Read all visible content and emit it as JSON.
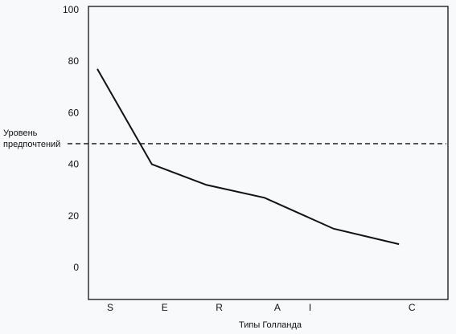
{
  "chart_data": {
    "type": "line",
    "title": "",
    "xlabel": "Типы Голланда",
    "ylabel_lines": [
      "Уровень",
      "предпочтений"
    ],
    "categories": [
      "S",
      "E",
      "R",
      "A",
      "I",
      "C"
    ],
    "category_labels": [
      "S",
      "E",
      "R",
      "A",
      "I",
      "C"
    ],
    "series": [
      {
        "x": [
          0,
          1.5,
          3,
          4.6,
          6.5,
          8.3
        ],
        "values": [
          77,
          40,
          32,
          27,
          15,
          9
        ]
      }
    ],
    "category_x": [
      0,
      1.5,
      3,
      4.6,
      5.5,
      8.3
    ],
    "ylim": [
      0,
      100
    ],
    "yticks": [
      "0",
      "20",
      "40",
      "60",
      "80",
      "100"
    ],
    "threshold": 48,
    "threshold_style": "dashed",
    "grid": false,
    "colors": {
      "line": "#111111",
      "axis": "#111111",
      "background": "#f7f9fb"
    }
  }
}
